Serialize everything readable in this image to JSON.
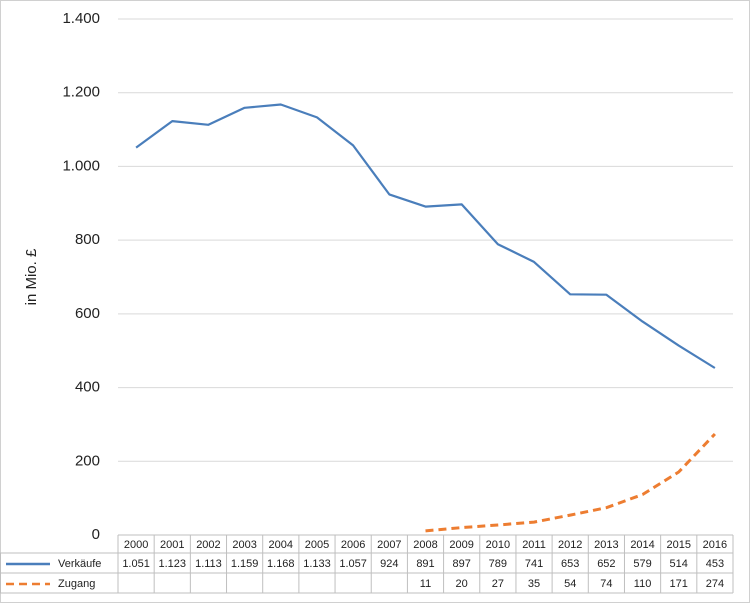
{
  "chart_data": {
    "type": "line",
    "ylabel": "in Mio. £",
    "categories": [
      "2000",
      "2001",
      "2002",
      "2003",
      "2004",
      "2005",
      "2006",
      "2007",
      "2008",
      "2009",
      "2010",
      "2011",
      "2012",
      "2013",
      "2014",
      "2015",
      "2016"
    ],
    "series": [
      {
        "name": "Verkäufe",
        "color": "#4a7ebb",
        "dashed": false,
        "values": [
          1051,
          1123,
          1113,
          1159,
          1168,
          1133,
          1057,
          924,
          891,
          897,
          789,
          741,
          653,
          652,
          579,
          514,
          453
        ],
        "value_labels": [
          "1.051",
          "1.123",
          "1.113",
          "1.159",
          "1.168",
          "1.133",
          "1.057",
          "924",
          "891",
          "897",
          "789",
          "741",
          "653",
          "652",
          "579",
          "514",
          "453"
        ]
      },
      {
        "name": "Zugang",
        "color": "#ed7d31",
        "dashed": true,
        "values": [
          null,
          null,
          null,
          null,
          null,
          null,
          null,
          null,
          11,
          20,
          27,
          35,
          54,
          74,
          110,
          171,
          274
        ]
      }
    ],
    "ylim": [
      0,
      1400
    ],
    "yticks": [
      0,
      200,
      400,
      600,
      800,
      {
        "value": 1000,
        "label": "1.000"
      },
      {
        "value": 1200,
        "label": "1.200"
      },
      {
        "value": 1400,
        "label": "1.400"
      }
    ],
    "grid": true
  }
}
